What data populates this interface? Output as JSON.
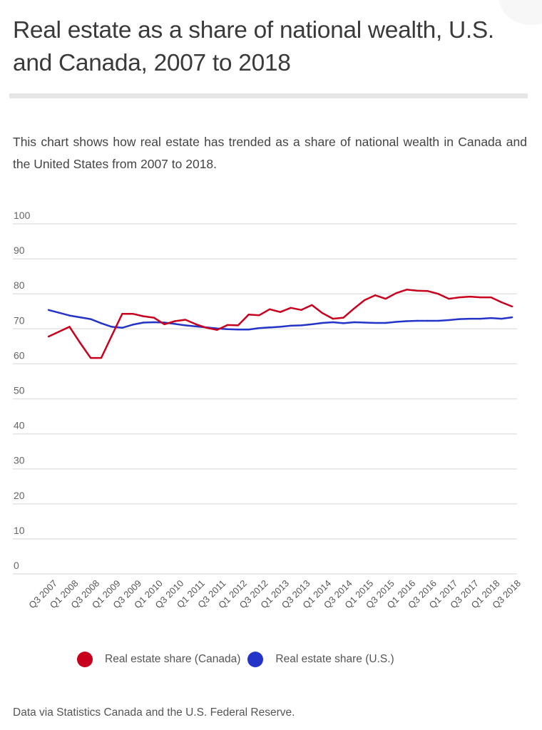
{
  "header": {
    "title": "Real estate as a share of national wealth, U.S. and Canada, 2007 to 2018",
    "description": "This chart shows how real estate has trended as a share of national wealth in Canada and the United States from 2007 to 2018."
  },
  "footer": {
    "source": "Data via Statistics Canada and the U.S. Federal Reserve."
  },
  "chart_data": {
    "type": "line",
    "title": "Real estate as a share of national wealth, U.S. and Canada, 2007 to 2018",
    "xlabel": "",
    "ylabel": "",
    "ylim": [
      0,
      100
    ],
    "yticks": [
      "0",
      "10",
      "20",
      "30",
      "40",
      "50",
      "60",
      "70",
      "80",
      "90",
      "100"
    ],
    "grid": true,
    "legend_position": "bottom",
    "x": [
      "Q3 2007",
      "Q4 2007",
      "Q1 2008",
      "Q2 2008",
      "Q3 2008",
      "Q4 2008",
      "Q1 2009",
      "Q2 2009",
      "Q3 2009",
      "Q4 2009",
      "Q1 2010",
      "Q2 2010",
      "Q3 2010",
      "Q4 2010",
      "Q1 2011",
      "Q2 2011",
      "Q3 2011",
      "Q4 2011",
      "Q1 2012",
      "Q2 2012",
      "Q3 2012",
      "Q4 2012",
      "Q1 2013",
      "Q2 2013",
      "Q3 2013",
      "Q4 2013",
      "Q1 2014",
      "Q2 2014",
      "Q3 2014",
      "Q4 2014",
      "Q1 2015",
      "Q2 2015",
      "Q3 2015",
      "Q4 2015",
      "Q1 2016",
      "Q2 2016",
      "Q3 2016",
      "Q4 2016",
      "Q1 2017",
      "Q2 2017",
      "Q3 2017",
      "Q4 2017",
      "Q1 2018",
      "Q2 2018",
      "Q3 2018"
    ],
    "xtick_labels": [
      "Q3 2007",
      "Q1 2008",
      "Q3 2008",
      "Q1 2009",
      "Q3 2009",
      "Q1 2010",
      "Q3 2010",
      "Q1 2011",
      "Q3 2011",
      "Q1 2012",
      "Q3 2012",
      "Q1 2013",
      "Q3 2013",
      "Q1 2014",
      "Q3 2014",
      "Q1 2015",
      "Q3 2015",
      "Q1 2016",
      "Q3 2016",
      "Q1 2017",
      "Q3 2017",
      "Q1 2018",
      "Q3 2018"
    ],
    "series": [
      {
        "name": "Real estate share (Canada)",
        "color": "#c8001e",
        "values": [
          67.8,
          69.2,
          70.6,
          66.0,
          61.7,
          61.7,
          68.0,
          74.3,
          74.3,
          73.6,
          73.2,
          71.3,
          72.2,
          72.6,
          71.3,
          70.3,
          69.7,
          71.1,
          71.0,
          74.1,
          73.9,
          75.6,
          74.8,
          76.0,
          75.4,
          76.8,
          74.5,
          72.9,
          73.2,
          75.8,
          78.2,
          79.6,
          78.6,
          80.2,
          81.2,
          80.9,
          80.8,
          80.0,
          78.6,
          79.0,
          79.2,
          79.0,
          79.0,
          77.6,
          76.4
        ]
      },
      {
        "name": "Real estate share (U.S.)",
        "color": "#2433c8",
        "values": [
          75.4,
          74.6,
          73.8,
          73.3,
          72.8,
          71.6,
          70.6,
          70.3,
          71.2,
          71.8,
          71.9,
          71.8,
          71.4,
          71.0,
          70.7,
          70.4,
          70.1,
          69.9,
          69.8,
          69.8,
          70.2,
          70.4,
          70.6,
          70.9,
          71.0,
          71.3,
          71.7,
          71.9,
          71.6,
          71.9,
          71.8,
          71.7,
          71.7,
          72.0,
          72.2,
          72.3,
          72.3,
          72.3,
          72.5,
          72.8,
          72.9,
          72.9,
          73.1,
          72.9,
          73.3
        ]
      }
    ]
  }
}
